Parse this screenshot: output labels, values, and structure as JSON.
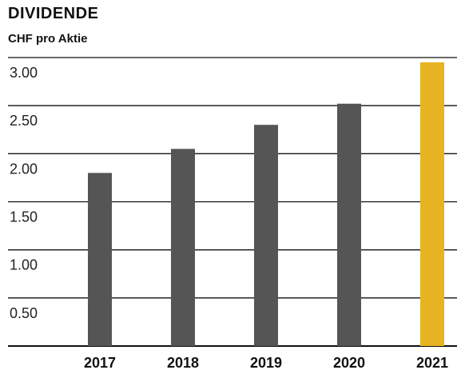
{
  "header": {
    "title": "DIVIDENDE",
    "subtitle": "CHF pro Aktie"
  },
  "chart_data": {
    "type": "bar",
    "title": "DIVIDENDE",
    "subtitle": "CHF pro Aktie",
    "categories": [
      "2017",
      "2018",
      "2019",
      "2020",
      "2021"
    ],
    "values": [
      1.8,
      2.05,
      2.3,
      2.52,
      2.95
    ],
    "ylim": [
      0,
      3.0
    ],
    "yticks": [
      0.5,
      1.0,
      1.5,
      2.0,
      2.5,
      3.0
    ],
    "ytick_labels": [
      "0.50",
      "1.00",
      "1.50",
      "2.00",
      "2.50",
      "3.00"
    ],
    "grid": true,
    "colors": {
      "default_bar": "#555555",
      "highlight_bar": "#e6b422",
      "grid": "#111111"
    },
    "highlight_category": "2021"
  }
}
